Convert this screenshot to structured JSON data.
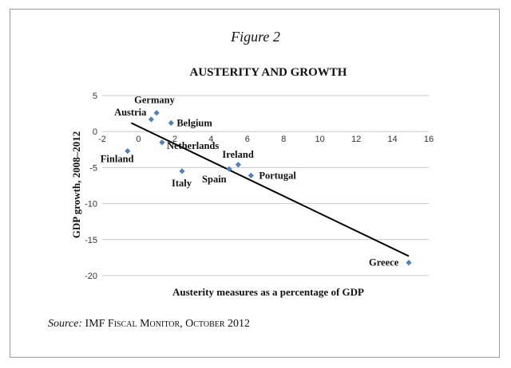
{
  "figure_label": "Figure 2",
  "source": {
    "tag": "Source:",
    "text": "IMF Fiscal Monitor, October 2012"
  },
  "chart_data": {
    "type": "scatter",
    "title": "AUSTERITY AND GROWTH",
    "xlabel": "Austerity measures as a percentage of GDP",
    "ylabel": "GDP growth, 2008–2012",
    "xlim": [
      -2,
      16
    ],
    "ylim": [
      -20,
      5
    ],
    "xticks": [
      -2,
      0,
      2,
      4,
      6,
      8,
      10,
      12,
      14,
      16
    ],
    "yticks": [
      5,
      0,
      -5,
      -10,
      -15,
      -20
    ],
    "grid": "horizontal",
    "marker_color": "#4f81bd",
    "trendline": {
      "x": [
        -0.4,
        14.9
      ],
      "y": [
        1.2,
        -17.3
      ]
    },
    "points": [
      {
        "label": "Germany",
        "x": 1.0,
        "y": 2.6
      },
      {
        "label": "Austria",
        "x": 0.7,
        "y": 1.7
      },
      {
        "label": "Belgium",
        "x": 1.8,
        "y": 1.2
      },
      {
        "label": "Netherlands",
        "x": 1.3,
        "y": -1.5
      },
      {
        "label": "Finland",
        "x": -0.6,
        "y": -2.7
      },
      {
        "label": "Ireland",
        "x": 5.5,
        "y": -4.6
      },
      {
        "label": "Spain",
        "x": 5.0,
        "y": -5.2
      },
      {
        "label": "Italy",
        "x": 2.4,
        "y": -5.5
      },
      {
        "label": "Portugal",
        "x": 6.2,
        "y": -6.1
      },
      {
        "label": "Greece",
        "x": 14.9,
        "y": -18.2
      }
    ]
  }
}
